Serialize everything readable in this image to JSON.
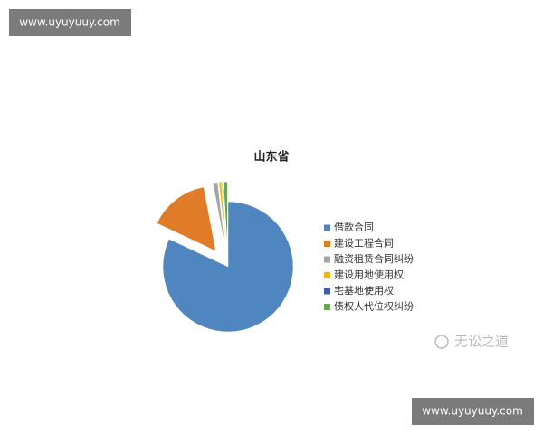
{
  "chart_data": {
    "type": "pie",
    "title": "山东省",
    "categories": [
      "借款合同",
      "建设工程合同",
      "融资租赁合同纠纷",
      "建设用地使用权",
      "宅基地使用权",
      "债权人代位权纠纷"
    ],
    "values": [
      82,
      15,
      1.2,
      0.6,
      0.2,
      1
    ],
    "colors": [
      "#4f86c0",
      "#e07b28",
      "#a5a5a5",
      "#f2b800",
      "#3b5fa8",
      "#6aa84f"
    ],
    "legend": "right"
  },
  "watermarks": {
    "top": "www.uyuyuuy.com",
    "bottom": "www.uyuyuuy.com",
    "brand": "无讼之道"
  }
}
